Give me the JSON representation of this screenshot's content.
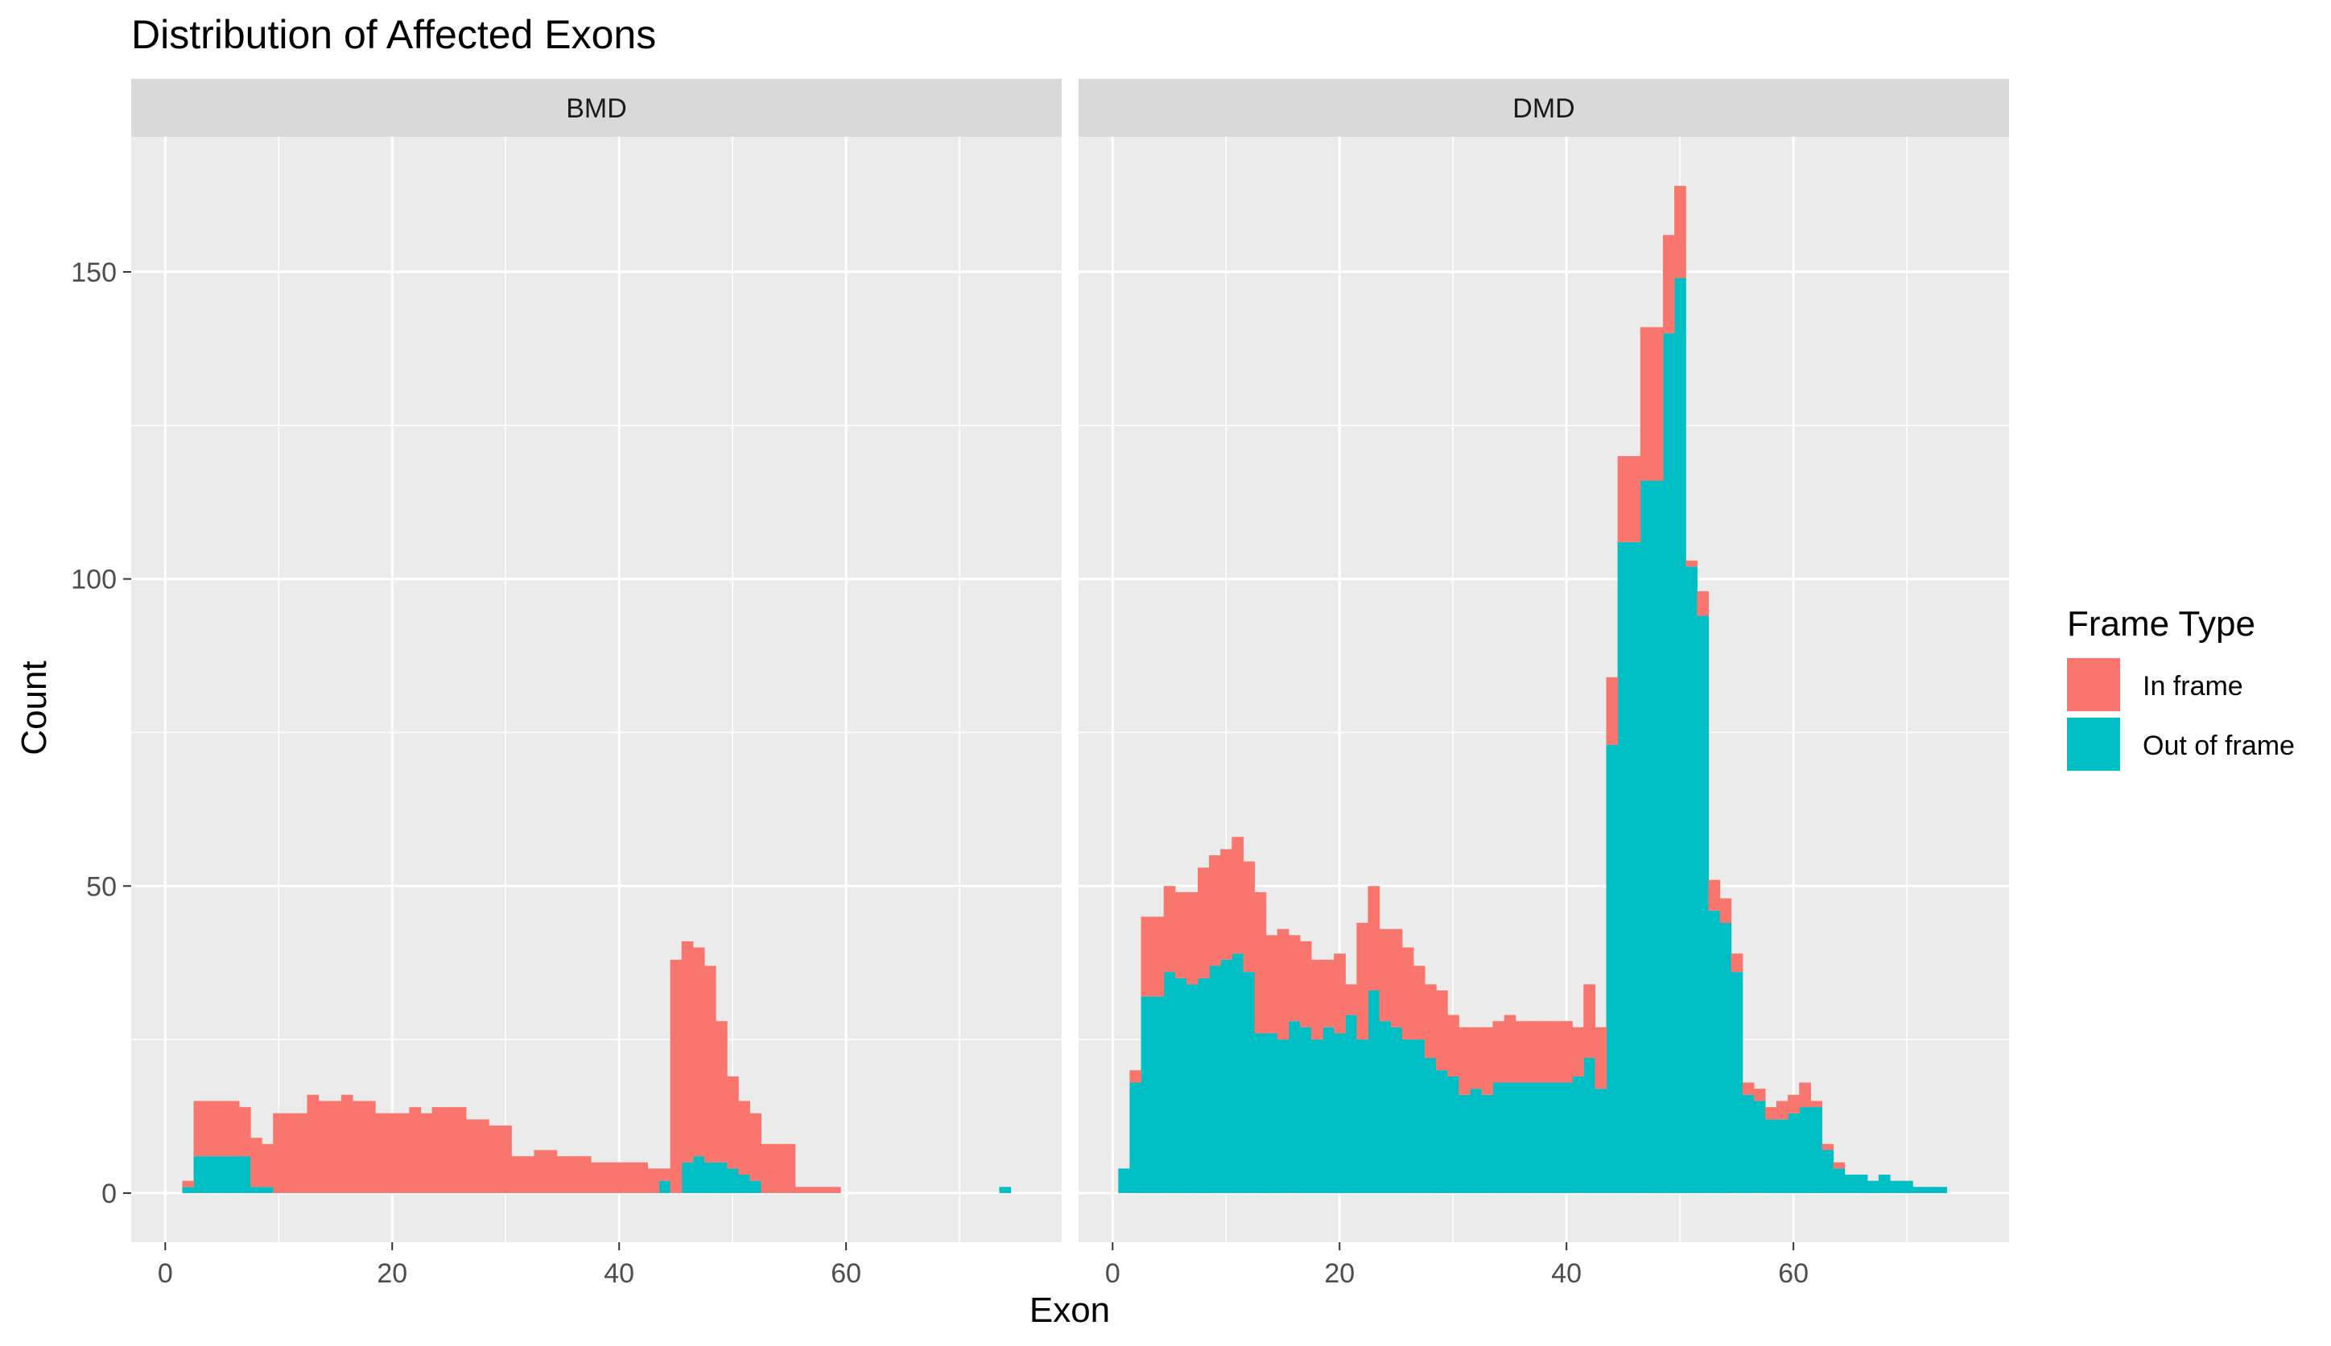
{
  "chart_data": {
    "type": "histogram-stacked-facet",
    "title": "Distribution of Affected Exons",
    "xlabel": "Exon",
    "ylabel": "Count",
    "xlim": [
      -3,
      79
    ],
    "ylim": [
      -8,
      172
    ],
    "x_ticks": [
      0,
      20,
      40,
      60
    ],
    "y_ticks": [
      0,
      50,
      100,
      150
    ],
    "bin_width": 1,
    "grid": true,
    "legend": {
      "title": "Frame Type",
      "placement": "right",
      "entries": [
        {
          "label": "In frame",
          "color": "#F8766D"
        },
        {
          "label": "Out of frame",
          "color": "#00BFC4"
        }
      ]
    },
    "facets": [
      {
        "label": "BMD",
        "series": [
          {
            "name": "Out of frame",
            "color": "#00BFC4",
            "bins": [
              [
                2,
                1
              ],
              [
                3,
                6
              ],
              [
                4,
                6
              ],
              [
                5,
                6
              ],
              [
                6,
                6
              ],
              [
                7,
                6
              ],
              [
                8,
                1
              ],
              [
                9,
                1
              ],
              [
                44,
                2
              ],
              [
                46,
                5
              ],
              [
                47,
                6
              ],
              [
                48,
                5
              ],
              [
                49,
                5
              ],
              [
                50,
                4
              ],
              [
                51,
                3
              ],
              [
                52,
                2
              ],
              [
                74,
                1
              ]
            ]
          },
          {
            "name": "In frame",
            "color": "#F8766D",
            "bins": [
              [
                2,
                1
              ],
              [
                3,
                9
              ],
              [
                4,
                9
              ],
              [
                5,
                9
              ],
              [
                6,
                9
              ],
              [
                7,
                8
              ],
              [
                8,
                8
              ],
              [
                9,
                7
              ],
              [
                10,
                13
              ],
              [
                11,
                13
              ],
              [
                12,
                13
              ],
              [
                13,
                16
              ],
              [
                14,
                15
              ],
              [
                15,
                15
              ],
              [
                16,
                16
              ],
              [
                17,
                15
              ],
              [
                18,
                15
              ],
              [
                19,
                13
              ],
              [
                20,
                13
              ],
              [
                21,
                13
              ],
              [
                22,
                14
              ],
              [
                23,
                13
              ],
              [
                24,
                14
              ],
              [
                25,
                14
              ],
              [
                26,
                14
              ],
              [
                27,
                12
              ],
              [
                28,
                12
              ],
              [
                29,
                11
              ],
              [
                30,
                11
              ],
              [
                31,
                6
              ],
              [
                32,
                6
              ],
              [
                33,
                7
              ],
              [
                34,
                7
              ],
              [
                35,
                6
              ],
              [
                36,
                6
              ],
              [
                37,
                6
              ],
              [
                38,
                5
              ],
              [
                39,
                5
              ],
              [
                40,
                5
              ],
              [
                41,
                5
              ],
              [
                42,
                5
              ],
              [
                43,
                4
              ],
              [
                44,
                2
              ],
              [
                45,
                38
              ],
              [
                46,
                36
              ],
              [
                47,
                34
              ],
              [
                48,
                32
              ],
              [
                49,
                23
              ],
              [
                50,
                15
              ],
              [
                51,
                12
              ],
              [
                52,
                11
              ],
              [
                53,
                8
              ],
              [
                54,
                8
              ],
              [
                55,
                8
              ],
              [
                56,
                1
              ],
              [
                57,
                1
              ],
              [
                58,
                1
              ],
              [
                59,
                1
              ]
            ]
          }
        ]
      },
      {
        "label": "DMD",
        "series": [
          {
            "name": "Out of frame",
            "color": "#00BFC4",
            "bins": [
              [
                1,
                4
              ],
              [
                2,
                18
              ],
              [
                3,
                32
              ],
              [
                4,
                32
              ],
              [
                5,
                36
              ],
              [
                6,
                35
              ],
              [
                7,
                34
              ],
              [
                8,
                35
              ],
              [
                9,
                37
              ],
              [
                10,
                38
              ],
              [
                11,
                39
              ],
              [
                12,
                36
              ],
              [
                13,
                26
              ],
              [
                14,
                26
              ],
              [
                15,
                25
              ],
              [
                16,
                28
              ],
              [
                17,
                27
              ],
              [
                18,
                25
              ],
              [
                19,
                27
              ],
              [
                20,
                26
              ],
              [
                21,
                29
              ],
              [
                22,
                25
              ],
              [
                23,
                33
              ],
              [
                24,
                28
              ],
              [
                25,
                27
              ],
              [
                26,
                25
              ],
              [
                27,
                25
              ],
              [
                28,
                22
              ],
              [
                29,
                20
              ],
              [
                30,
                19
              ],
              [
                31,
                16
              ],
              [
                32,
                17
              ],
              [
                33,
                16
              ],
              [
                34,
                18
              ],
              [
                35,
                18
              ],
              [
                36,
                18
              ],
              [
                37,
                18
              ],
              [
                38,
                18
              ],
              [
                39,
                18
              ],
              [
                40,
                18
              ],
              [
                41,
                19
              ],
              [
                42,
                22
              ],
              [
                43,
                17
              ],
              [
                44,
                73
              ],
              [
                45,
                106
              ],
              [
                46,
                106
              ],
              [
                47,
                116
              ],
              [
                48,
                116
              ],
              [
                49,
                140
              ],
              [
                50,
                149
              ],
              [
                51,
                102
              ],
              [
                52,
                94
              ],
              [
                53,
                46
              ],
              [
                54,
                44
              ],
              [
                55,
                36
              ],
              [
                56,
                16
              ],
              [
                57,
                15
              ],
              [
                58,
                12
              ],
              [
                59,
                12
              ],
              [
                60,
                13
              ],
              [
                61,
                14
              ],
              [
                62,
                14
              ],
              [
                63,
                7
              ],
              [
                64,
                4
              ],
              [
                65,
                3
              ],
              [
                66,
                3
              ],
              [
                67,
                2
              ],
              [
                68,
                3
              ],
              [
                69,
                2
              ],
              [
                70,
                2
              ],
              [
                71,
                1
              ],
              [
                72,
                1
              ],
              [
                73,
                1
              ]
            ]
          },
          {
            "name": "In frame",
            "color": "#F8766D",
            "bins": [
              [
                1,
                0
              ],
              [
                2,
                2
              ],
              [
                3,
                13
              ],
              [
                4,
                13
              ],
              [
                5,
                14
              ],
              [
                6,
                14
              ],
              [
                7,
                15
              ],
              [
                8,
                18
              ],
              [
                9,
                18
              ],
              [
                10,
                18
              ],
              [
                11,
                19
              ],
              [
                12,
                18
              ],
              [
                13,
                23
              ],
              [
                14,
                16
              ],
              [
                15,
                18
              ],
              [
                16,
                14
              ],
              [
                17,
                14
              ],
              [
                18,
                13
              ],
              [
                19,
                11
              ],
              [
                20,
                13
              ],
              [
                21,
                5
              ],
              [
                22,
                19
              ],
              [
                23,
                17
              ],
              [
                24,
                15
              ],
              [
                25,
                16
              ],
              [
                26,
                15
              ],
              [
                27,
                12
              ],
              [
                28,
                12
              ],
              [
                29,
                13
              ],
              [
                30,
                10
              ],
              [
                31,
                11
              ],
              [
                32,
                10
              ],
              [
                33,
                11
              ],
              [
                34,
                10
              ],
              [
                35,
                11
              ],
              [
                36,
                10
              ],
              [
                37,
                10
              ],
              [
                38,
                10
              ],
              [
                39,
                10
              ],
              [
                40,
                10
              ],
              [
                41,
                8
              ],
              [
                42,
                12
              ],
              [
                43,
                10
              ],
              [
                44,
                11
              ],
              [
                45,
                14
              ],
              [
                46,
                14
              ],
              [
                47,
                25
              ],
              [
                48,
                25
              ],
              [
                49,
                16
              ],
              [
                50,
                15
              ],
              [
                51,
                1
              ],
              [
                52,
                4
              ],
              [
                53,
                5
              ],
              [
                54,
                4
              ],
              [
                55,
                3
              ],
              [
                56,
                2
              ],
              [
                57,
                2
              ],
              [
                58,
                2
              ],
              [
                59,
                3
              ],
              [
                60,
                3
              ],
              [
                61,
                4
              ],
              [
                62,
                1
              ],
              [
                63,
                1
              ],
              [
                64,
                1
              ]
            ]
          }
        ]
      }
    ]
  }
}
